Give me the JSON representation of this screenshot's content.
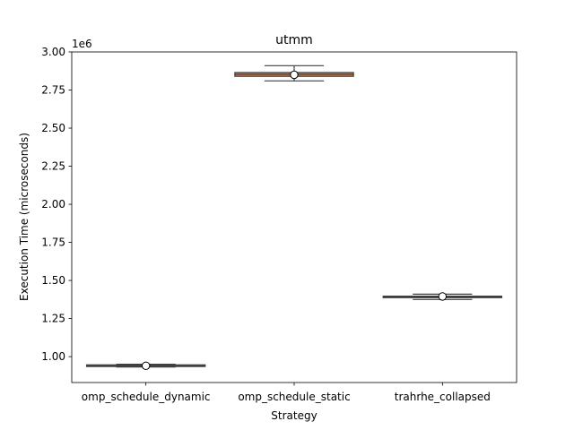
{
  "chart_data": {
    "type": "box",
    "title": "utmm",
    "xlabel": "Strategy",
    "ylabel": "Execution Time (microseconds)",
    "y_multiplier_label": "1e6",
    "ylim": [
      0.83,
      3.0
    ],
    "y_ticks": [
      1.0,
      1.25,
      1.5,
      1.75,
      2.0,
      2.25,
      2.5,
      2.75,
      3.0
    ],
    "y_tick_labels": [
      "1.00",
      "1.25",
      "1.50",
      "1.75",
      "2.00",
      "2.25",
      "2.50",
      "2.75",
      "3.00"
    ],
    "categories": [
      "omp_schedule_dynamic",
      "omp_schedule_static",
      "trahrhe_collapsed"
    ],
    "boxes": [
      {
        "category": "omp_schedule_dynamic",
        "whisker_low": 0.932,
        "q1": 0.935,
        "median": 0.94,
        "q3": 0.946,
        "whisker_high": 0.95,
        "mean": 0.94,
        "color": "#c44e52"
      },
      {
        "category": "omp_schedule_static",
        "whisker_low": 2.81,
        "q1": 2.84,
        "median": 2.853,
        "q3": 2.865,
        "whisker_high": 2.91,
        "mean": 2.85,
        "color": "#dd8452"
      },
      {
        "category": "trahrhe_collapsed",
        "whisker_low": 1.375,
        "q1": 1.387,
        "median": 1.392,
        "q3": 1.397,
        "whisker_high": 1.41,
        "mean": 1.395,
        "color": "#55a868"
      }
    ],
    "grid": false,
    "legend": "none"
  }
}
